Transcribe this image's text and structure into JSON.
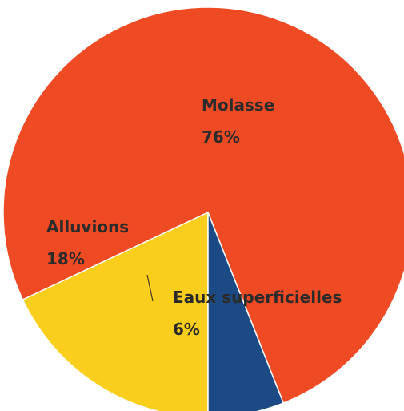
{
  "chart_data": {
    "type": "pie",
    "categories": [
      "Alluvions",
      "Molasse",
      "Eaux superficielles"
    ],
    "values": [
      18,
      76,
      6
    ],
    "value_labels": [
      "18%",
      "76%",
      "6%"
    ],
    "colors": [
      "#f9ce1d",
      "#ee4b24",
      "#1b4a85"
    ]
  }
}
